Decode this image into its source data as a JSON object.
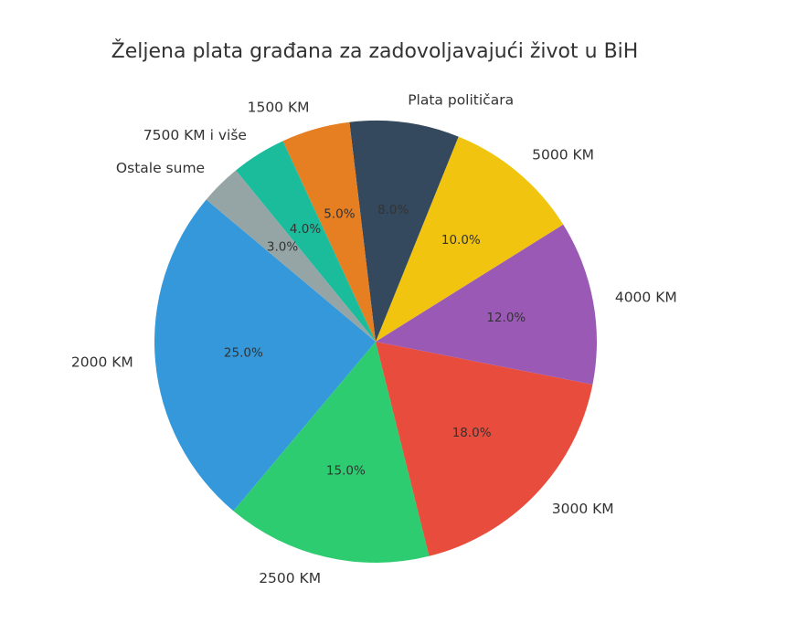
{
  "chart_data": {
    "type": "pie",
    "title": "Željena plata građana za zadovoljavajući život u BiH",
    "start_angle_deg": 140,
    "direction": "counterclockwise",
    "slices": [
      {
        "label": "2000 KM",
        "value": 25.0,
        "pct_label": "25.0%",
        "color": "#3498db"
      },
      {
        "label": "2500 KM",
        "value": 15.0,
        "pct_label": "15.0%",
        "color": "#2ecc71"
      },
      {
        "label": "3000 KM",
        "value": 18.0,
        "pct_label": "18.0%",
        "color": "#e74c3c"
      },
      {
        "label": "4000 KM",
        "value": 12.0,
        "pct_label": "12.0%",
        "color": "#9b59b6"
      },
      {
        "label": "5000 KM",
        "value": 10.0,
        "pct_label": "10.0%",
        "color": "#f1c40f"
      },
      {
        "label": "Plata političara",
        "value": 8.0,
        "pct_label": "8.0%",
        "color": "#34495e"
      },
      {
        "label": "1500 KM",
        "value": 5.0,
        "pct_label": "5.0%",
        "color": "#e67e22"
      },
      {
        "label": "7500 KM i više",
        "value": 4.0,
        "pct_label": "4.0%",
        "color": "#1abc9c"
      },
      {
        "label": "Ostale sume",
        "value": 3.0,
        "pct_label": "3.0%",
        "color": "#95a5a6"
      }
    ]
  }
}
